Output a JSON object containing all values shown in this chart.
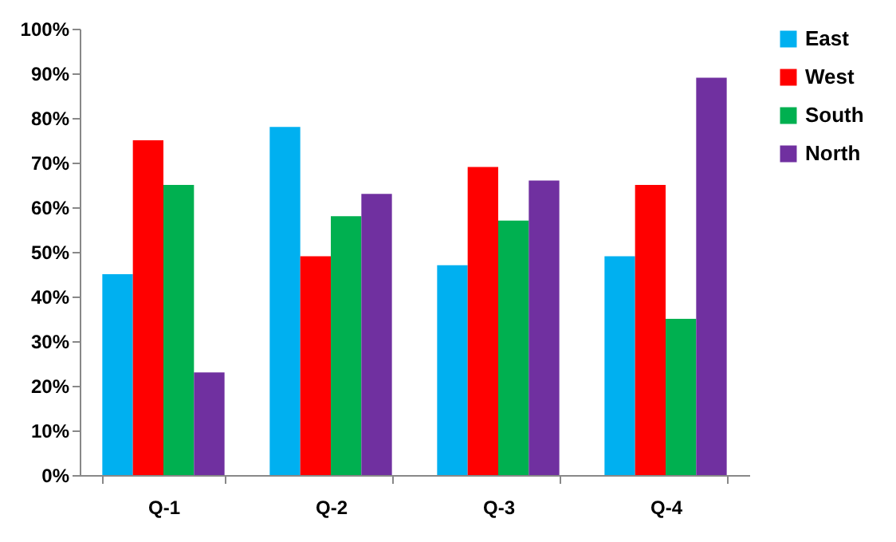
{
  "chart_data": {
    "type": "bar",
    "categories": [
      "Q-1",
      "Q-2",
      "Q-3",
      "Q-4"
    ],
    "series": [
      {
        "name": "East",
        "color": "#00b0f0",
        "values": [
          45,
          78,
          47,
          49
        ]
      },
      {
        "name": "West",
        "color": "#ff0000",
        "values": [
          75,
          49,
          69,
          65
        ]
      },
      {
        "name": "South",
        "color": "#00b050",
        "values": [
          65,
          58,
          57,
          35
        ]
      },
      {
        "name": "North",
        "color": "#7030a0",
        "values": [
          23,
          63,
          66,
          89
        ]
      }
    ],
    "ylim": [
      0,
      100
    ],
    "yticks": [
      {
        "value": 0,
        "label": "0%"
      },
      {
        "value": 10,
        "label": "10%"
      },
      {
        "value": 20,
        "label": "20%"
      },
      {
        "value": 30,
        "label": "30%"
      },
      {
        "value": 40,
        "label": "40%"
      },
      {
        "value": 50,
        "label": "50%"
      },
      {
        "value": 60,
        "label": "60%"
      },
      {
        "value": 70,
        "label": "70%"
      },
      {
        "value": 80,
        "label": "80%"
      },
      {
        "value": 90,
        "label": "90%"
      },
      {
        "value": 100,
        "label": "100%"
      }
    ],
    "grid": false,
    "legend": "right"
  }
}
